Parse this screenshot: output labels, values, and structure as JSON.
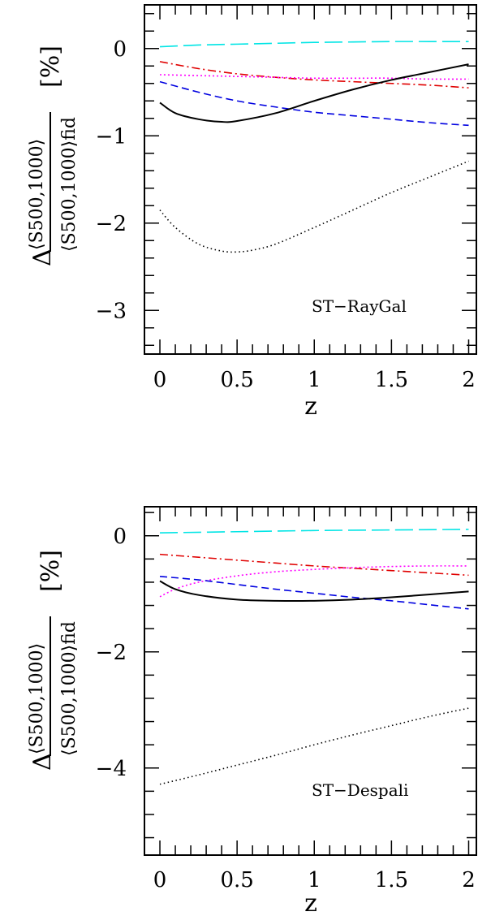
{
  "chart_data": [
    {
      "type": "line",
      "annotation": "ST−RayGal",
      "xlabel": "z",
      "ylabel": {
        "delta": "Δ",
        "numerator": "⟨S500,1000⟩",
        "denominator": "⟨S500,1000⟩fid",
        "unit": "[%]"
      },
      "xlim": [
        -0.1,
        2.05
      ],
      "ylim": [
        -3.5,
        0.5
      ],
      "xticks": [
        0,
        0.5,
        1,
        1.5,
        2
      ],
      "xtick_labels": [
        "0",
        "0.5",
        "1",
        "1.5",
        "2"
      ],
      "yticks": [
        0,
        -1,
        -2,
        -3
      ],
      "ytick_labels": [
        "0",
        "−1",
        "−2",
        "−3"
      ],
      "grid": false,
      "series": [
        {
          "style": "long-dash",
          "color": "#00e5e5",
          "x": [
            0,
            0.25,
            0.5,
            0.75,
            1,
            1.25,
            1.5,
            1.75,
            2
          ],
          "y": [
            0.02,
            0.04,
            0.05,
            0.06,
            0.07,
            0.075,
            0.08,
            0.08,
            0.08
          ]
        },
        {
          "style": "dot-dash",
          "color": "#e00000",
          "x": [
            0,
            0.25,
            0.5,
            0.75,
            1,
            1.25,
            1.5,
            1.75,
            2
          ],
          "y": [
            -0.15,
            -0.23,
            -0.29,
            -0.33,
            -0.36,
            -0.38,
            -0.4,
            -0.42,
            -0.45
          ]
        },
        {
          "style": "dotted",
          "color": "#ff00ff",
          "x": [
            0,
            0.25,
            0.5,
            0.75,
            1,
            1.25,
            1.5,
            1.75,
            2
          ],
          "y": [
            -0.3,
            -0.31,
            -0.32,
            -0.33,
            -0.34,
            -0.34,
            -0.34,
            -0.35,
            -0.35
          ]
        },
        {
          "style": "short-dash",
          "color": "#0000e0",
          "x": [
            0,
            0.25,
            0.5,
            0.75,
            1,
            1.25,
            1.5,
            1.75,
            2
          ],
          "y": [
            -0.38,
            -0.5,
            -0.6,
            -0.67,
            -0.73,
            -0.77,
            -0.81,
            -0.85,
            -0.88
          ]
        },
        {
          "style": "solid",
          "color": "#000000",
          "x": [
            0,
            0.1,
            0.25,
            0.4,
            0.5,
            0.75,
            1,
            1.25,
            1.5,
            1.75,
            2
          ],
          "y": [
            -0.62,
            -0.74,
            -0.81,
            -0.84,
            -0.83,
            -0.74,
            -0.6,
            -0.47,
            -0.36,
            -0.27,
            -0.18
          ]
        },
        {
          "style": "fine-dotted",
          "color": "#000000",
          "x": [
            0,
            0.1,
            0.25,
            0.4,
            0.5,
            0.6,
            0.75,
            1,
            1.25,
            1.5,
            1.75,
            2
          ],
          "y": [
            -1.85,
            -2.05,
            -2.24,
            -2.32,
            -2.33,
            -2.31,
            -2.24,
            -2.05,
            -1.85,
            -1.65,
            -1.47,
            -1.29
          ]
        }
      ]
    },
    {
      "type": "line",
      "annotation": "ST−Despali",
      "xlabel": "z",
      "ylabel": {
        "delta": "Δ",
        "numerator": "⟨S500,1000⟩",
        "denominator": "⟨S500,1000⟩fid",
        "unit": "[%]"
      },
      "xlim": [
        -0.1,
        2.05
      ],
      "ylim": [
        -5.5,
        0.5
      ],
      "xticks": [
        0,
        0.5,
        1,
        1.5,
        2
      ],
      "xtick_labels": [
        "0",
        "0.5",
        "1",
        "1.5",
        "2"
      ],
      "yticks": [
        0,
        -2,
        -4
      ],
      "ytick_labels": [
        "0",
        "−2",
        "−4"
      ],
      "grid": false,
      "series": [
        {
          "style": "long-dash",
          "color": "#00e5e5",
          "x": [
            0,
            0.5,
            1,
            1.5,
            2
          ],
          "y": [
            0.05,
            0.07,
            0.09,
            0.1,
            0.11
          ]
        },
        {
          "style": "dot-dash",
          "color": "#e00000",
          "x": [
            0,
            0.25,
            0.5,
            0.75,
            1,
            1.25,
            1.5,
            1.75,
            2
          ],
          "y": [
            -0.32,
            -0.37,
            -0.42,
            -0.47,
            -0.52,
            -0.56,
            -0.6,
            -0.64,
            -0.68
          ]
        },
        {
          "style": "dotted",
          "color": "#ff00ff",
          "x": [
            0,
            0.1,
            0.25,
            0.5,
            0.75,
            1,
            1.25,
            1.5,
            1.75,
            2
          ],
          "y": [
            -1.05,
            -0.92,
            -0.8,
            -0.69,
            -0.62,
            -0.58,
            -0.55,
            -0.53,
            -0.52,
            -0.52
          ]
        },
        {
          "style": "short-dash",
          "color": "#0000e0",
          "x": [
            0,
            0.25,
            0.5,
            0.75,
            1,
            1.25,
            1.5,
            1.75,
            2
          ],
          "y": [
            -0.7,
            -0.76,
            -0.84,
            -0.92,
            -0.99,
            -1.06,
            -1.12,
            -1.19,
            -1.26
          ]
        },
        {
          "style": "solid",
          "color": "#000000",
          "x": [
            0,
            0.1,
            0.25,
            0.5,
            0.75,
            1,
            1.25,
            1.5,
            1.75,
            2
          ],
          "y": [
            -0.78,
            -0.92,
            -1.02,
            -1.1,
            -1.12,
            -1.12,
            -1.1,
            -1.06,
            -1.01,
            -0.96
          ]
        },
        {
          "style": "fine-dotted",
          "color": "#000000",
          "x": [
            0,
            0.25,
            0.5,
            0.75,
            1,
            1.25,
            1.5,
            1.75,
            2
          ],
          "y": [
            -4.28,
            -4.12,
            -3.95,
            -3.78,
            -3.6,
            -3.43,
            -3.27,
            -3.11,
            -2.97
          ]
        }
      ]
    }
  ]
}
